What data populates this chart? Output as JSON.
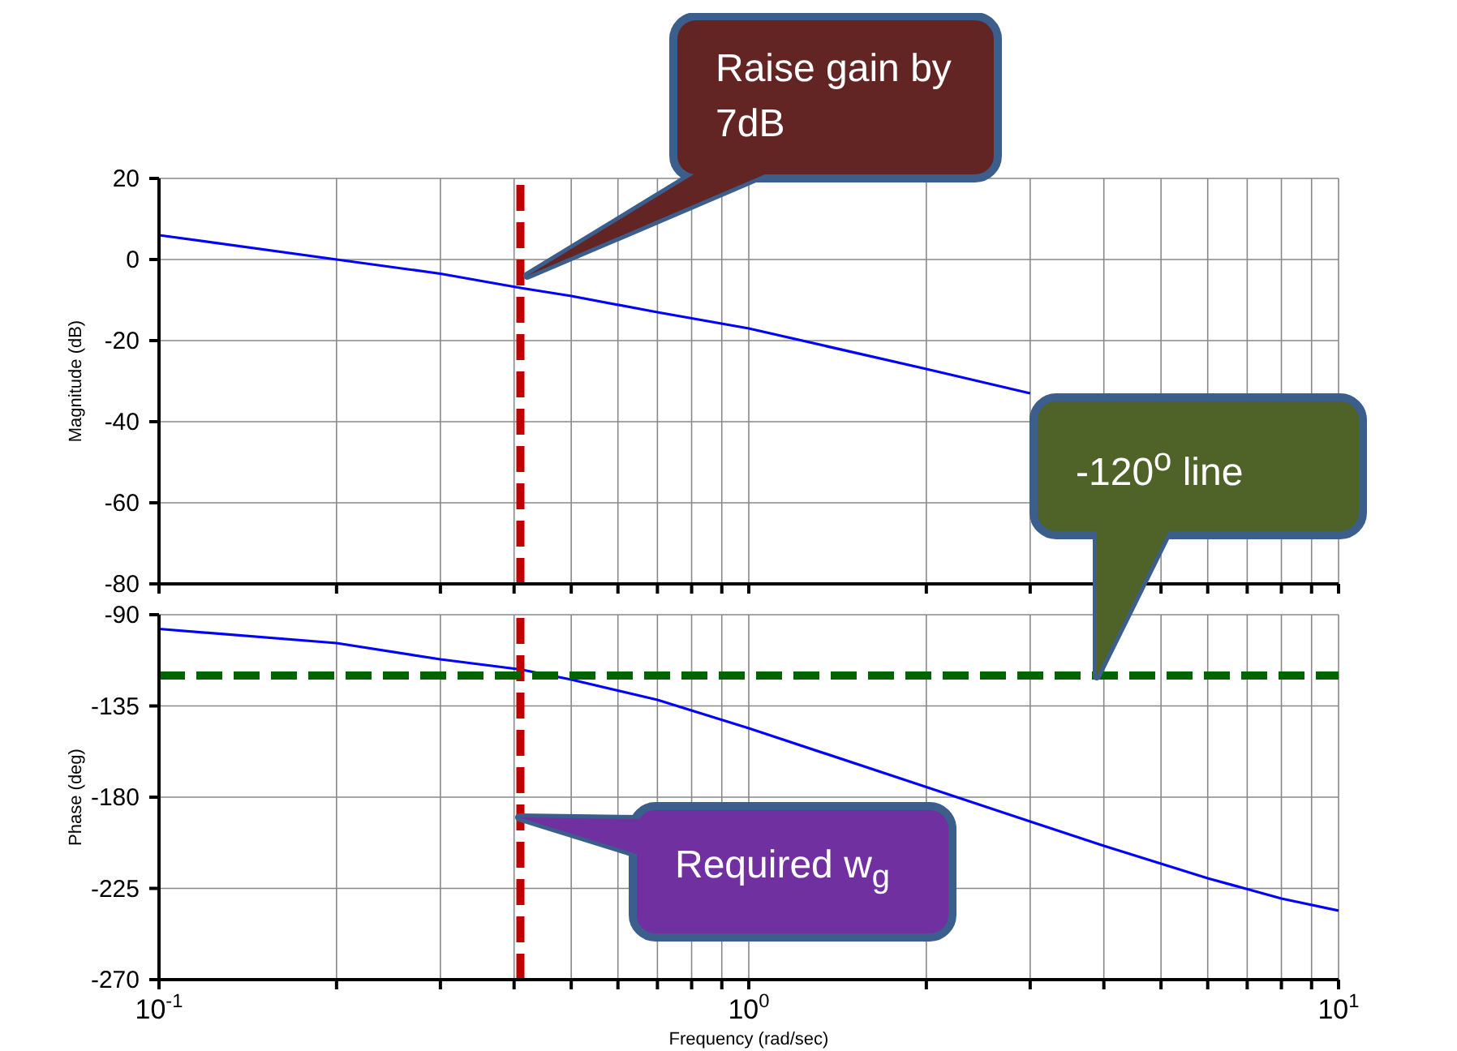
{
  "chart_data": [
    {
      "type": "line",
      "ylabel": "Magnitude (dB)",
      "x": [
        0.1,
        0.2,
        0.3,
        0.41,
        0.5,
        0.7,
        1,
        2,
        3
      ],
      "series": [
        {
          "color": "#0000ff",
          "values": [
            6,
            0,
            -3.5,
            -7,
            -9,
            -13,
            -17,
            -27,
            -33
          ]
        }
      ],
      "xlim": [
        0.1,
        10
      ],
      "log": "x",
      "xticks": [
        {
          "value": 0.1,
          "label": null
        },
        {
          "value": 0.2,
          "label": null
        },
        {
          "value": 0.3,
          "label": null
        },
        {
          "value": 0.4,
          "label": null
        },
        {
          "value": 0.5,
          "label": null
        },
        {
          "value": 0.6,
          "label": null
        },
        {
          "value": 0.7,
          "label": null
        },
        {
          "value": 0.8,
          "label": null
        },
        {
          "value": 0.9,
          "label": null
        },
        {
          "value": 1,
          "label": null
        },
        {
          "value": 2,
          "label": null
        },
        {
          "value": 3,
          "label": null
        },
        {
          "value": 4,
          "label": null
        },
        {
          "value": 5,
          "label": null
        },
        {
          "value": 6,
          "label": null
        },
        {
          "value": 7,
          "label": null
        },
        {
          "value": 8,
          "label": null
        },
        {
          "value": 9,
          "label": null
        },
        {
          "value": 10,
          "label": null
        }
      ],
      "ylim": [
        -80,
        20
      ],
      "yticks": [
        -80,
        -60,
        -40,
        -20,
        0,
        20
      ],
      "grid": true,
      "tick_labels": "y",
      "ref_lines": [
        {
          "axis": "x",
          "value": 0.41,
          "color": "#c00000",
          "line_style": "dashed"
        }
      ],
      "annotations": [
        "Raise gain by 7dB"
      ]
    },
    {
      "type": "line",
      "ylabel": "Phase (deg)",
      "xlabel": "Frequency  (rad/sec)",
      "x": [
        0.1,
        0.2,
        0.3,
        0.41,
        0.5,
        0.7,
        1,
        2,
        3,
        4,
        6,
        8,
        10
      ],
      "series": [
        {
          "color": "#0000ff",
          "values": [
            -97,
            -104,
            -112,
            -117,
            -122,
            -132,
            -146,
            -175,
            -192,
            -204,
            -220,
            -230,
            -236
          ]
        }
      ],
      "xlim": [
        0.1,
        10
      ],
      "log": "x",
      "xticks": [
        {
          "value": 0.1,
          "label": "10$^{-1}$"
        },
        {
          "value": 0.2,
          "label": null
        },
        {
          "value": 0.3,
          "label": null
        },
        {
          "value": 0.4,
          "label": null
        },
        {
          "value": 0.5,
          "label": null
        },
        {
          "value": 0.6,
          "label": null
        },
        {
          "value": 0.7,
          "label": null
        },
        {
          "value": 0.8,
          "label": null
        },
        {
          "value": 0.9,
          "label": null
        },
        {
          "value": 1,
          "label": "10$^{0}$"
        },
        {
          "value": 2,
          "label": null
        },
        {
          "value": 3,
          "label": null
        },
        {
          "value": 4,
          "label": null
        },
        {
          "value": 5,
          "label": null
        },
        {
          "value": 6,
          "label": null
        },
        {
          "value": 7,
          "label": null
        },
        {
          "value": 8,
          "label": null
        },
        {
          "value": 9,
          "label": null
        },
        {
          "value": 10,
          "label": "10$^{1}$"
        }
      ],
      "ylim": [
        -270,
        -90
      ],
      "yticks": [
        -270,
        -225,
        -180,
        -135,
        -90
      ],
      "grid": true,
      "ref_lines": [
        {
          "axis": "x",
          "value": 0.41,
          "color": "#c00000",
          "line_style": "dashed"
        },
        {
          "axis": "y",
          "value": -120,
          "color": "#006400",
          "line_style": "dashed"
        }
      ],
      "annotations": [
        "-120$^{o}$ line",
        "Required w$_{g}$"
      ]
    }
  ]
}
